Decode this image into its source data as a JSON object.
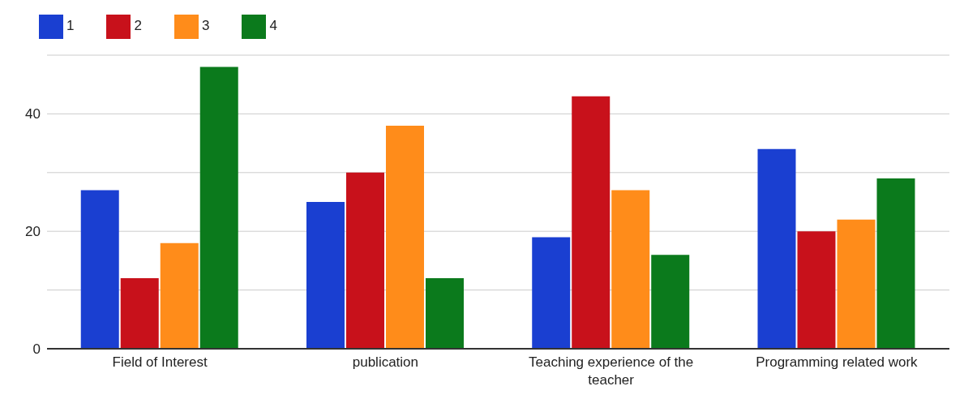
{
  "chart_data": {
    "type": "bar",
    "categories": [
      "Field of Interest",
      "publication",
      "Teaching experience of the teacher",
      "Programming related work"
    ],
    "series": [
      {
        "name": "1",
        "color": "#1a3fd1",
        "values": [
          27,
          25,
          19,
          34
        ]
      },
      {
        "name": "2",
        "color": "#c8111b",
        "values": [
          12,
          30,
          43,
          20
        ]
      },
      {
        "name": "3",
        "color": "#ff8c1a",
        "values": [
          18,
          38,
          27,
          22
        ]
      },
      {
        "name": "4",
        "color": "#0b7a1c",
        "values": [
          48,
          12,
          16,
          29
        ]
      }
    ],
    "ylim": [
      0,
      50
    ],
    "yticks": [
      0,
      {
        "value": 10,
        "label": null
      },
      20,
      {
        "value": 30,
        "label": null
      },
      40,
      {
        "value": 50,
        "label": null
      }
    ],
    "grid": "y",
    "legend": "top left"
  }
}
